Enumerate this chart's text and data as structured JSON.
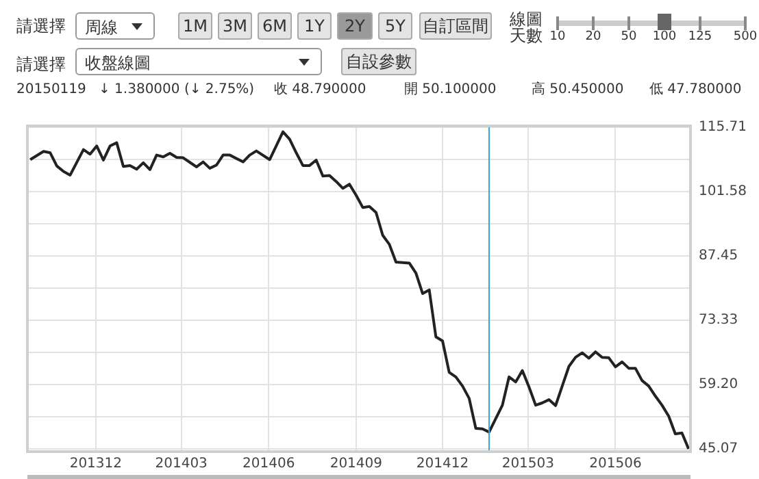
{
  "chart_data": {
    "type": "line",
    "x": [
      "2013-09-23",
      "2013-10-07",
      "2013-10-14",
      "2013-10-21",
      "2013-10-28",
      "2013-11-04",
      "2013-11-18",
      "2013-11-25",
      "2013-12-02",
      "2013-12-09",
      "2013-12-16",
      "2013-12-23",
      "2013-12-30",
      "2014-01-06",
      "2014-01-13",
      "2014-01-20",
      "2014-01-27",
      "2014-02-03",
      "2014-02-10",
      "2014-02-17",
      "2014-02-24",
      "2014-03-03",
      "2014-03-10",
      "2014-03-17",
      "2014-03-24",
      "2014-03-31",
      "2014-04-07",
      "2014-04-14",
      "2014-04-21",
      "2014-05-05",
      "2014-05-12",
      "2014-05-19",
      "2014-06-02",
      "2014-06-16",
      "2014-06-23",
      "2014-06-30",
      "2014-07-07",
      "2014-07-14",
      "2014-07-21",
      "2014-07-28",
      "2014-08-04",
      "2014-08-11",
      "2014-08-18",
      "2014-08-25",
      "2014-09-01",
      "2014-09-08",
      "2014-09-15",
      "2014-09-22",
      "2014-09-29",
      "2014-10-06",
      "2014-10-13",
      "2014-10-20",
      "2014-10-27",
      "2014-11-03",
      "2014-11-10",
      "2014-11-17",
      "2014-11-24",
      "2014-12-01",
      "2014-12-08",
      "2014-12-15",
      "2014-12-22",
      "2014-12-29",
      "2015-01-05",
      "2015-01-12",
      "2015-01-19",
      "2015-02-02",
      "2015-02-09",
      "2015-02-16",
      "2015-02-23",
      "2015-03-02",
      "2015-03-09",
      "2015-03-16",
      "2015-03-23",
      "2015-03-30",
      "2015-04-06",
      "2015-04-13",
      "2015-04-20",
      "2015-04-27",
      "2015-05-04",
      "2015-05-11",
      "2015-05-18",
      "2015-05-25",
      "2015-06-01",
      "2015-06-08",
      "2015-06-15",
      "2015-06-22",
      "2015-06-29",
      "2015-07-06",
      "2015-07-13",
      "2015-07-20",
      "2015-07-27",
      "2015-08-03",
      "2015-08-10",
      "2015-08-17"
    ],
    "series": [
      {
        "color": "#222222",
        "values": [
          108.6,
          110.4,
          110.1,
          107.2,
          106.0,
          105.2,
          110.8,
          109.8,
          111.6,
          108.5,
          111.6,
          112.3,
          107.1,
          107.3,
          106.5,
          107.9,
          106.4,
          109.6,
          109.2,
          110.0,
          109.1,
          109.0,
          108.0,
          107.0,
          108.1,
          106.7,
          107.4,
          109.6,
          109.6,
          108.1,
          109.6,
          110.5,
          108.6,
          114.7,
          113.1,
          110.1,
          107.3,
          107.3,
          108.5,
          105.0,
          105.1,
          103.8,
          102.3,
          103.2,
          100.8,
          98.1,
          98.3,
          97.0,
          92.0,
          90.0,
          86.1,
          86.0,
          85.9,
          83.7,
          79.2,
          80.0,
          69.7,
          68.8,
          61.9,
          60.9,
          58.9,
          56.2,
          49.6,
          49.5,
          48.8,
          54.7,
          60.9,
          59.8,
          62.3,
          58.7,
          54.7,
          55.2,
          55.9,
          54.6,
          58.9,
          63.2,
          65.2,
          66.2,
          65.0,
          66.4,
          65.2,
          65.1,
          63.1,
          64.2,
          62.8,
          62.8,
          60.1,
          58.9,
          56.7,
          54.7,
          52.3,
          48.4,
          48.6,
          45.1
        ]
      }
    ],
    "xlim": [
      "2013-09-20",
      "2015-08-19"
    ],
    "xticks": [
      {
        "value": "2013-12-01",
        "label": "201312"
      },
      {
        "value": "2014-03-01",
        "label": "201403"
      },
      {
        "value": "2014-06-01",
        "label": "201406"
      },
      {
        "value": "2014-09-01",
        "label": "201409"
      },
      {
        "value": "2014-12-01",
        "label": "201412"
      },
      {
        "value": "2015-03-01",
        "label": "201503"
      },
      {
        "value": "2015-06-01",
        "label": "201506"
      }
    ],
    "ylim": [
      44.5,
      116
    ],
    "yticks": [
      {
        "value": 45.07,
        "label": "45.07"
      },
      {
        "value": 52.135,
        "label": null
      },
      {
        "value": 59.2,
        "label": "59.20"
      },
      {
        "value": 66.265,
        "label": null
      },
      {
        "value": 73.33,
        "label": "73.33"
      },
      {
        "value": 80.39,
        "label": null
      },
      {
        "value": 87.45,
        "label": "87.45"
      },
      {
        "value": 94.515,
        "label": null
      },
      {
        "value": 101.58,
        "label": "101.58"
      },
      {
        "value": 108.645,
        "label": null
      },
      {
        "value": 115.71,
        "label": "115.71"
      }
    ],
    "grid": true,
    "ref_lines": [
      {
        "axis": "x",
        "value": "2015-01-19",
        "color": "#3aa6dd"
      }
    ],
    "annotations": [
      "請選擇",
      "周線",
      "1M",
      "3M",
      "6M",
      "1Y",
      "2Y",
      "5Y",
      "自訂區間",
      "線圖天數",
      "10",
      "20",
      "50",
      "100",
      "125",
      "500",
      "請選擇",
      "收盤線圖",
      "自設參數",
      "20150119",
      "↓ 1.380000 (↓ 2.75%)",
      "收 48.790000",
      "開 50.100000",
      "高 50.450000",
      "低 47.780000"
    ]
  }
}
